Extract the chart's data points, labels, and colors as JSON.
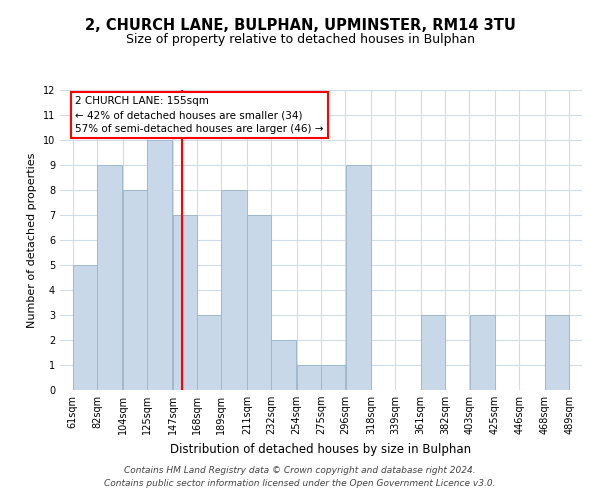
{
  "title1": "2, CHURCH LANE, BULPHAN, UPMINSTER, RM14 3TU",
  "title2": "Size of property relative to detached houses in Bulphan",
  "xlabel": "Distribution of detached houses by size in Bulphan",
  "ylabel": "Number of detached properties",
  "bar_left_edges": [
    61,
    82,
    104,
    125,
    147,
    168,
    189,
    211,
    232,
    254,
    275,
    296,
    318,
    339,
    361,
    382,
    403,
    425,
    446,
    468
  ],
  "bar_widths": [
    21,
    22,
    21,
    22,
    21,
    21,
    22,
    21,
    22,
    21,
    21,
    22,
    21,
    22,
    21,
    21,
    22,
    21,
    22,
    21
  ],
  "bar_heights": [
    5,
    9,
    8,
    10,
    7,
    3,
    8,
    7,
    2,
    1,
    1,
    9,
    0,
    0,
    3,
    0,
    3,
    0,
    0,
    3
  ],
  "bar_color": "#c8d8e8",
  "bar_edgecolor": "#a0b8cc",
  "red_line_x": 155,
  "ylim": [
    0,
    12
  ],
  "yticks": [
    0,
    1,
    2,
    3,
    4,
    5,
    6,
    7,
    8,
    9,
    10,
    11,
    12
  ],
  "xlim": [
    50,
    500
  ],
  "xtick_labels": [
    "61sqm",
    "82sqm",
    "104sqm",
    "125sqm",
    "147sqm",
    "168sqm",
    "189sqm",
    "211sqm",
    "232sqm",
    "254sqm",
    "275sqm",
    "296sqm",
    "318sqm",
    "339sqm",
    "361sqm",
    "382sqm",
    "403sqm",
    "425sqm",
    "446sqm",
    "468sqm",
    "489sqm"
  ],
  "xtick_positions": [
    61,
    82,
    104,
    125,
    147,
    168,
    189,
    211,
    232,
    254,
    275,
    296,
    318,
    339,
    361,
    382,
    403,
    425,
    446,
    468,
    489
  ],
  "annotation_title": "2 CHURCH LANE: 155sqm",
  "annotation_line1": "← 42% of detached houses are smaller (34)",
  "annotation_line2": "57% of semi-detached houses are larger (46) →",
  "footer1": "Contains HM Land Registry data © Crown copyright and database right 2024.",
  "footer2": "Contains public sector information licensed under the Open Government Licence v3.0.",
  "bg_color": "#ffffff",
  "grid_color": "#d0dce8",
  "title1_fontsize": 10.5,
  "title2_fontsize": 9,
  "xlabel_fontsize": 8.5,
  "ylabel_fontsize": 8,
  "tick_fontsize": 7,
  "annotation_fontsize": 7.5,
  "footer_fontsize": 6.5
}
